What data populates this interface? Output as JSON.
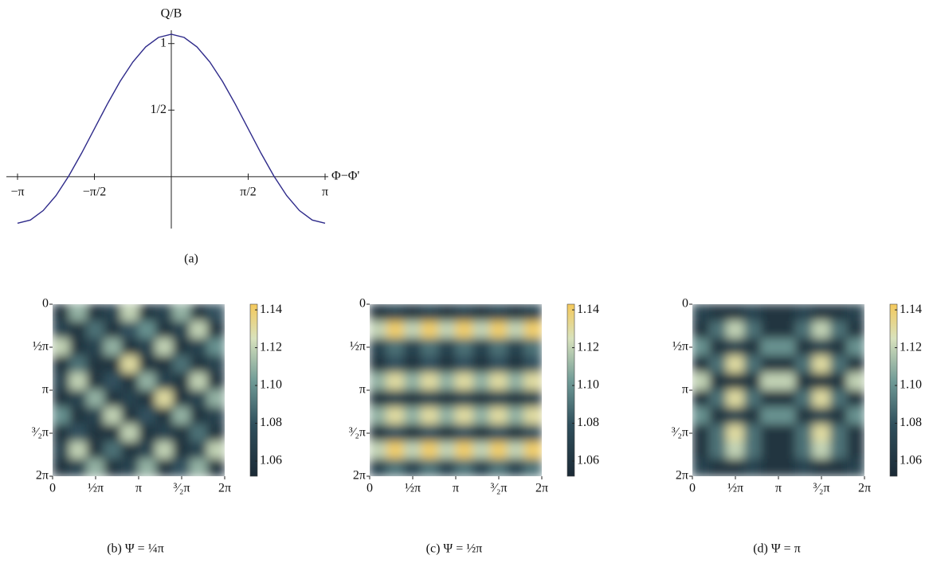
{
  "chart_data": [
    {
      "type": "line",
      "caption": "(a)",
      "ylabel": "Q/B",
      "xlabel": "Φ−Φ'",
      "color": "#2e2a8a",
      "xlim": [
        -3.1416,
        3.1416
      ],
      "ylim": [
        -0.39,
        1.1
      ],
      "xticks": [
        {
          "value": -3.1416,
          "label": "−π"
        },
        {
          "value": -1.5708,
          "label": "−π/2"
        },
        {
          "value": 1.5708,
          "label": "π/2"
        },
        {
          "value": 3.1416,
          "label": "π"
        }
      ],
      "yticks": [
        {
          "value": 0.5,
          "label": "1/2"
        },
        1
      ],
      "x": [
        -3.1416,
        -2.8798,
        -2.618,
        -2.3562,
        -2.0944,
        -1.8326,
        -1.5708,
        -1.309,
        -1.0472,
        -0.7854,
        -0.5236,
        -0.2618,
        0,
        0.2618,
        0.5236,
        0.7854,
        1.0472,
        1.309,
        1.5708,
        1.8326,
        2.0944,
        2.3562,
        2.618,
        2.8798,
        3.1416
      ],
      "values": [
        -0.35,
        -0.326,
        -0.255,
        -0.142,
        0.005,
        0.176,
        0.36,
        0.544,
        0.715,
        0.862,
        0.975,
        1.046,
        1.07,
        1.046,
        0.975,
        0.862,
        0.715,
        0.544,
        0.36,
        0.176,
        0.005,
        -0.142,
        -0.255,
        -0.326,
        -0.35
      ]
    },
    {
      "type": "heatmap",
      "caption": "(b)  Ψ = ¼π",
      "xlim": [
        0,
        6.2832
      ],
      "ylim": [
        0,
        6.2832
      ],
      "zlim": [
        1.052,
        1.143
      ],
      "xticks": [
        0,
        {
          "value": 1.5708,
          "label": "½π"
        },
        {
          "value": 3.1416,
          "label": "π"
        },
        {
          "value": 4.7124,
          "label": "³⁄₂π"
        },
        {
          "value": 6.2832,
          "label": "2π"
        }
      ],
      "yticks": [
        0,
        {
          "value": 1.5708,
          "label": "½π"
        },
        {
          "value": 3.1416,
          "label": "π"
        },
        {
          "value": 4.7124,
          "label": "³⁄₂π"
        },
        {
          "value": 6.2832,
          "label": "2π"
        }
      ],
      "zticks": [
        1.06,
        1.08,
        {
          "value": 1.1,
          "label": "1.10"
        },
        1.12,
        1.14
      ],
      "z": [
        [
          1.06,
          1.11,
          1.06,
          1.07,
          1.12,
          1.06,
          1.07,
          1.11,
          1.06,
          1.08
        ],
        [
          1.07,
          1.06,
          1.09,
          1.06,
          1.08,
          1.1,
          1.06,
          1.07,
          1.12,
          1.06
        ],
        [
          1.12,
          1.06,
          1.07,
          1.11,
          1.06,
          1.07,
          1.12,
          1.06,
          1.07,
          1.1
        ],
        [
          1.06,
          1.09,
          1.06,
          1.06,
          1.13,
          1.06,
          1.06,
          1.09,
          1.06,
          1.07
        ],
        [
          1.07,
          1.12,
          1.06,
          1.08,
          1.06,
          1.11,
          1.07,
          1.06,
          1.12,
          1.06
        ],
        [
          1.06,
          1.07,
          1.11,
          1.06,
          1.07,
          1.06,
          1.13,
          1.06,
          1.07,
          1.11
        ],
        [
          1.1,
          1.06,
          1.07,
          1.12,
          1.06,
          1.08,
          1.06,
          1.11,
          1.06,
          1.07
        ],
        [
          1.06,
          1.08,
          1.06,
          1.06,
          1.12,
          1.06,
          1.07,
          1.06,
          1.09,
          1.06
        ],
        [
          1.07,
          1.12,
          1.06,
          1.09,
          1.06,
          1.07,
          1.12,
          1.06,
          1.07,
          1.12
        ],
        [
          1.06,
          1.07,
          1.11,
          1.06,
          1.07,
          1.11,
          1.06,
          1.08,
          1.11,
          1.06
        ]
      ]
    },
    {
      "type": "heatmap",
      "caption": "(c)  Ψ = ½π",
      "xlim": [
        0,
        6.2832
      ],
      "ylim": [
        0,
        6.2832
      ],
      "zlim": [
        1.052,
        1.143
      ],
      "xticks": [
        0,
        {
          "value": 1.5708,
          "label": "½π"
        },
        {
          "value": 3.1416,
          "label": "π"
        },
        {
          "value": 4.7124,
          "label": "³⁄₂π"
        },
        {
          "value": 6.2832,
          "label": "2π"
        }
      ],
      "yticks": [
        0,
        {
          "value": 1.5708,
          "label": "½π"
        },
        {
          "value": 3.1416,
          "label": "π"
        },
        {
          "value": 4.7124,
          "label": "³⁄₂π"
        },
        {
          "value": 6.2832,
          "label": "2π"
        }
      ],
      "zticks": [
        1.06,
        1.08,
        {
          "value": 1.1,
          "label": "1.10"
        },
        1.12,
        1.14
      ],
      "z": [
        [
          1.06,
          1.07,
          1.06,
          1.07,
          1.06,
          1.07,
          1.06,
          1.07,
          1.06,
          1.07
        ],
        [
          1.12,
          1.14,
          1.12,
          1.14,
          1.12,
          1.14,
          1.12,
          1.14,
          1.12,
          1.14
        ],
        [
          1.07,
          1.09,
          1.07,
          1.09,
          1.07,
          1.09,
          1.07,
          1.09,
          1.07,
          1.09
        ],
        [
          1.06,
          1.08,
          1.06,
          1.08,
          1.06,
          1.08,
          1.06,
          1.08,
          1.06,
          1.08
        ],
        [
          1.11,
          1.13,
          1.11,
          1.13,
          1.11,
          1.13,
          1.11,
          1.13,
          1.11,
          1.13
        ],
        [
          1.06,
          1.07,
          1.06,
          1.07,
          1.06,
          1.07,
          1.06,
          1.07,
          1.06,
          1.07
        ],
        [
          1.11,
          1.13,
          1.11,
          1.13,
          1.11,
          1.13,
          1.11,
          1.13,
          1.11,
          1.13
        ],
        [
          1.06,
          1.08,
          1.06,
          1.08,
          1.06,
          1.08,
          1.06,
          1.08,
          1.06,
          1.08
        ],
        [
          1.12,
          1.14,
          1.12,
          1.14,
          1.12,
          1.14,
          1.12,
          1.14,
          1.12,
          1.14
        ],
        [
          1.07,
          1.09,
          1.07,
          1.09,
          1.07,
          1.09,
          1.07,
          1.09,
          1.07,
          1.09
        ]
      ]
    },
    {
      "type": "heatmap",
      "caption": "(d)  Ψ = π",
      "xlim": [
        0,
        6.2832
      ],
      "ylim": [
        0,
        6.2832
      ],
      "zlim": [
        1.052,
        1.143
      ],
      "xticks": [
        0,
        {
          "value": 1.5708,
          "label": "½π"
        },
        {
          "value": 3.1416,
          "label": "π"
        },
        {
          "value": 4.7124,
          "label": "³⁄₂π"
        },
        {
          "value": 6.2832,
          "label": "2π"
        }
      ],
      "yticks": [
        0,
        {
          "value": 1.5708,
          "label": "½π"
        },
        {
          "value": 3.1416,
          "label": "π"
        },
        {
          "value": 4.7124,
          "label": "³⁄₂π"
        },
        {
          "value": 6.2832,
          "label": "2π"
        }
      ],
      "zticks": [
        1.06,
        1.08,
        {
          "value": 1.1,
          "label": "1.10"
        },
        1.12,
        1.14
      ],
      "z": [
        [
          1.07,
          1.06,
          1.06,
          1.07,
          1.06,
          1.06,
          1.07,
          1.06,
          1.06,
          1.07
        ],
        [
          1.06,
          1.09,
          1.12,
          1.09,
          1.06,
          1.06,
          1.09,
          1.12,
          1.09,
          1.06
        ],
        [
          1.1,
          1.06,
          1.07,
          1.06,
          1.1,
          1.1,
          1.06,
          1.07,
          1.06,
          1.1
        ],
        [
          1.06,
          1.09,
          1.13,
          1.09,
          1.06,
          1.06,
          1.09,
          1.13,
          1.09,
          1.06
        ],
        [
          1.12,
          1.06,
          1.06,
          1.06,
          1.12,
          1.12,
          1.06,
          1.06,
          1.06,
          1.12
        ],
        [
          1.06,
          1.09,
          1.13,
          1.09,
          1.06,
          1.06,
          1.09,
          1.13,
          1.09,
          1.06
        ],
        [
          1.1,
          1.06,
          1.07,
          1.06,
          1.1,
          1.1,
          1.06,
          1.07,
          1.06,
          1.1
        ],
        [
          1.06,
          1.09,
          1.13,
          1.09,
          1.06,
          1.06,
          1.09,
          1.13,
          1.09,
          1.06
        ],
        [
          1.06,
          1.09,
          1.12,
          1.09,
          1.06,
          1.06,
          1.09,
          1.12,
          1.09,
          1.06
        ],
        [
          1.07,
          1.06,
          1.06,
          1.07,
          1.06,
          1.06,
          1.07,
          1.06,
          1.06,
          1.07
        ]
      ]
    }
  ]
}
